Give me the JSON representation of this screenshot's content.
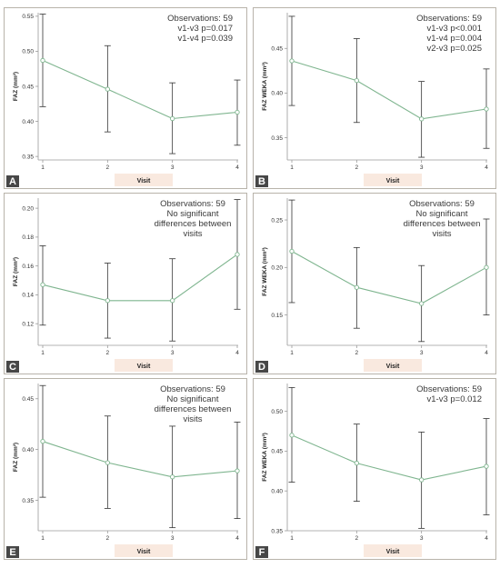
{
  "chart_data": [
    {
      "panel": "A",
      "type": "line",
      "x": [
        1,
        2,
        3,
        4
      ],
      "y": [
        0.487,
        0.446,
        0.404,
        0.413
      ],
      "err_low": [
        0.421,
        0.385,
        0.354,
        0.366
      ],
      "err_high": [
        0.553,
        0.508,
        0.455,
        0.459
      ],
      "ylim": [
        0.345,
        0.555
      ],
      "yticks": [
        0.35,
        0.4,
        0.45,
        0.5,
        0.55
      ],
      "ytick_labels": [
        "0.35",
        "0.40",
        "0.45",
        "0.50",
        "0.55"
      ],
      "xticks": [
        1,
        2,
        3,
        4
      ],
      "xtick_labels": [
        "1",
        "2",
        "3",
        "4"
      ],
      "ylabel": "FAZ (mm²)",
      "xlabel": "Visit",
      "annotations": [
        "Observations: 59",
        "v1-v3 p=0.017",
        "v1-v4 p=0.039"
      ]
    },
    {
      "panel": "B",
      "type": "line",
      "x": [
        1,
        2,
        3,
        4
      ],
      "y": [
        0.436,
        0.414,
        0.371,
        0.382
      ],
      "err_low": [
        0.386,
        0.367,
        0.328,
        0.338
      ],
      "err_high": [
        0.486,
        0.461,
        0.413,
        0.427
      ],
      "ylim": [
        0.325,
        0.49
      ],
      "yticks": [
        0.35,
        0.4,
        0.45
      ],
      "ytick_labels": [
        "0.35",
        "0.40",
        "0.45"
      ],
      "xticks": [
        1,
        2,
        3,
        4
      ],
      "xtick_labels": [
        "1",
        "2",
        "3",
        "4"
      ],
      "ylabel": "FAZ WEKA (mm²)",
      "xlabel": "Visit",
      "annotations": [
        "Observations: 59",
        "v1-v3 p<0.001",
        "v1-v4 p=0.004",
        "v2-v3 p=0.025"
      ]
    },
    {
      "panel": "C",
      "type": "line",
      "x": [
        1,
        2,
        3,
        4
      ],
      "y": [
        0.147,
        0.136,
        0.136,
        0.168
      ],
      "err_low": [
        0.119,
        0.11,
        0.108,
        0.13
      ],
      "err_high": [
        0.174,
        0.162,
        0.165,
        0.206
      ],
      "ylim": [
        0.105,
        0.207
      ],
      "yticks": [
        0.12,
        0.14,
        0.16,
        0.18,
        0.2
      ],
      "ytick_labels": [
        "0.12",
        "0.14",
        "0.16",
        "0.18",
        "0.20"
      ],
      "xticks": [
        1,
        2,
        3,
        4
      ],
      "xtick_labels": [
        "1",
        "2",
        "3",
        "4"
      ],
      "ylabel": "FAZ (mm²)",
      "xlabel": "Visit",
      "annotations": [
        "Observations: 59",
        "No significant",
        "differences between",
        "visits"
      ]
    },
    {
      "panel": "D",
      "type": "line",
      "x": [
        1,
        2,
        3,
        4
      ],
      "y": [
        0.217,
        0.179,
        0.162,
        0.2
      ],
      "err_low": [
        0.163,
        0.136,
        0.122,
        0.15
      ],
      "err_high": [
        0.271,
        0.221,
        0.202,
        0.251
      ],
      "ylim": [
        0.118,
        0.273
      ],
      "yticks": [
        0.15,
        0.2,
        0.25
      ],
      "ytick_labels": [
        "0.15",
        "0.20",
        "0.25"
      ],
      "xticks": [
        1,
        2,
        3,
        4
      ],
      "xtick_labels": [
        "1",
        "2",
        "3",
        "4"
      ],
      "ylabel": "FAZ WEKA (mm²)",
      "xlabel": "Visit",
      "annotations": [
        "Observations: 59",
        "No significant",
        "differences between",
        "visits"
      ]
    },
    {
      "panel": "E",
      "type": "line",
      "x": [
        1,
        2,
        3,
        4
      ],
      "y": [
        0.408,
        0.387,
        0.373,
        0.379
      ],
      "err_low": [
        0.353,
        0.342,
        0.323,
        0.332
      ],
      "err_high": [
        0.463,
        0.433,
        0.423,
        0.427
      ],
      "ylim": [
        0.32,
        0.465
      ],
      "yticks": [
        0.35,
        0.4,
        0.45
      ],
      "ytick_labels": [
        "0.35",
        "0.40",
        "0.45"
      ],
      "xticks": [
        1,
        2,
        3,
        4
      ],
      "xtick_labels": [
        "1",
        "2",
        "3",
        "4"
      ],
      "ylabel": "FAZ (mm²)",
      "xlabel": "Visit",
      "annotations": [
        "Observations: 59",
        "No significant",
        "differences between",
        "visits"
      ]
    },
    {
      "panel": "F",
      "type": "line",
      "x": [
        1,
        2,
        3,
        4
      ],
      "y": [
        0.47,
        0.435,
        0.414,
        0.431
      ],
      "err_low": [
        0.411,
        0.387,
        0.353,
        0.37
      ],
      "err_high": [
        0.53,
        0.484,
        0.474,
        0.491
      ],
      "ylim": [
        0.35,
        0.535
      ],
      "yticks": [
        0.35,
        0.4,
        0.45,
        0.5
      ],
      "ytick_labels": [
        "0.35",
        "0.40",
        "0.45",
        "0.50"
      ],
      "xticks": [
        1,
        2,
        3,
        4
      ],
      "xtick_labels": [
        "1",
        "2",
        "3",
        "4"
      ],
      "ylabel": "FAZ WEKA (mm²)",
      "xlabel": "Visit",
      "annotations": [
        "Observations: 59",
        "v1-v3 p=0.012"
      ]
    }
  ],
  "colors": {
    "line": "#7fb58f",
    "errorbar": "#333333",
    "frame": "#b8b3aa",
    "xlabel_bg": "#f9e9df",
    "letter_bg": "#474747"
  }
}
